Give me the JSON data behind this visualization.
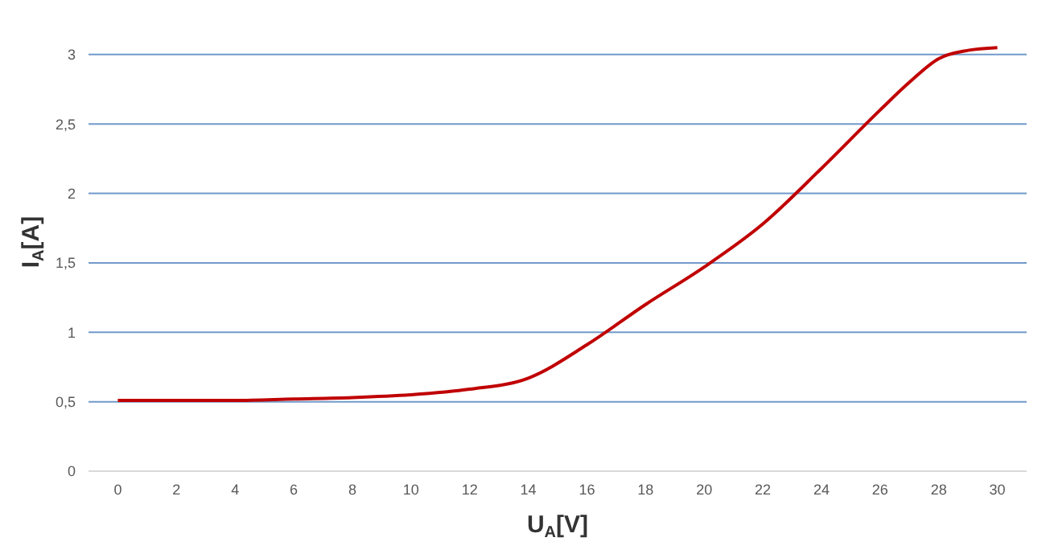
{
  "chart_data": {
    "type": "line",
    "xlabel": "U$_{A}$[V]",
    "ylabel": "I$_{A}$[A]",
    "x": [
      0,
      2,
      4,
      6,
      8,
      10,
      12,
      14,
      16,
      18,
      20,
      22,
      24,
      26,
      27,
      28,
      29,
      30
    ],
    "series": [
      {
        "color": "#c00000",
        "values": [
          0.51,
          0.51,
          0.51,
          0.52,
          0.53,
          0.55,
          0.59,
          0.67,
          0.91,
          1.2,
          1.47,
          1.78,
          2.18,
          2.6,
          2.8,
          2.97,
          3.03,
          3.05
        ]
      }
    ],
    "xlim": [
      -1,
      31
    ],
    "xticks": [
      0,
      2,
      4,
      6,
      8,
      10,
      12,
      14,
      16,
      18,
      20,
      22,
      24,
      26,
      28,
      30
    ],
    "ylim": [
      0,
      3.3
    ],
    "yticks": [
      0,
      {
        "value": 0.5,
        "label": "0,5"
      },
      1,
      {
        "value": 1.5,
        "label": "1,5"
      },
      2,
      {
        "value": 2.5,
        "label": "2,5"
      },
      3
    ],
    "grid": "y",
    "marker": "none",
    "line_style": "solid"
  }
}
